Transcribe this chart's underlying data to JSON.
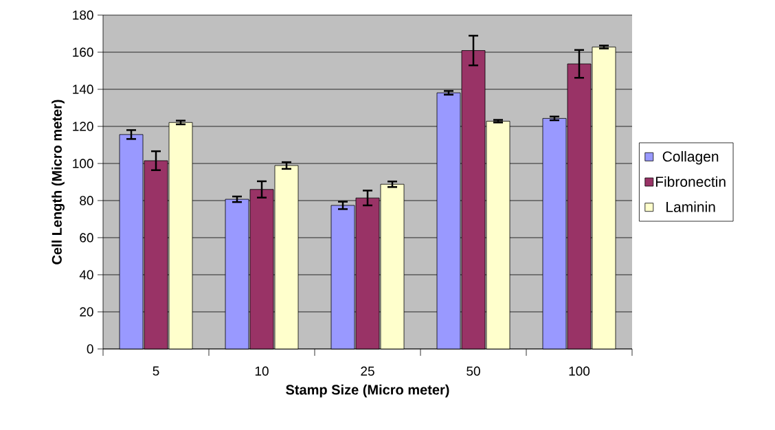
{
  "chart_data": {
    "type": "bar",
    "xlabel": "Stamp Size (Micro meter)",
    "ylabel": "Cell Length (Micro meter)",
    "categories": [
      "5",
      "10",
      "25",
      "50",
      "100"
    ],
    "series": [
      {
        "name": "Collagen",
        "color": "#9999ff",
        "values": [
          115.6,
          80.7,
          77.4,
          138.1,
          124.3
        ],
        "errors": [
          2.4,
          1.5,
          2,
          1,
          1
        ]
      },
      {
        "name": "Fibronectin",
        "color": "#993366",
        "values": [
          101.5,
          86,
          81.4,
          160.9,
          153.7
        ],
        "errors": [
          5.1,
          4.4,
          4,
          8,
          7.5
        ]
      },
      {
        "name": "Laminin",
        "color": "#ffffcc",
        "values": [
          122.1,
          98.9,
          88.8,
          122.8,
          162.8
        ],
        "errors": [
          1,
          1.8,
          1.5,
          0.7,
          0.8
        ]
      }
    ],
    "ylim": [
      0,
      180
    ],
    "yticks": [
      0,
      20,
      40,
      60,
      80,
      100,
      120,
      140,
      160,
      180
    ],
    "grid": "y",
    "legend": "right"
  }
}
